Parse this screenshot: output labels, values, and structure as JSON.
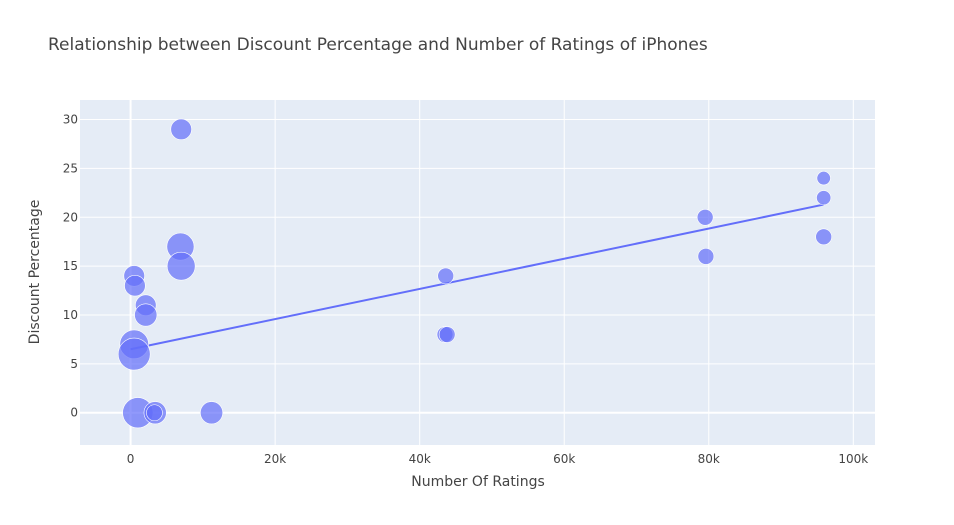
{
  "chart_data": {
    "type": "scatter",
    "title": "Relationship between Discount Percentage and Number of Ratings of iPhones",
    "xlabel": "Number Of Ratings",
    "ylabel": "Discount Percentage",
    "xlim": [
      -7000,
      103000
    ],
    "ylim": [
      -3.3,
      32
    ],
    "x_ticks": [
      0,
      20000,
      40000,
      60000,
      80000,
      100000
    ],
    "x_tick_labels": [
      "0",
      "20k",
      "40k",
      "60k",
      "80k",
      "100k"
    ],
    "y_ticks": [
      0,
      5,
      10,
      15,
      20,
      25,
      30
    ],
    "y_tick_labels": [
      "0",
      "5",
      "10",
      "15",
      "20",
      "25",
      "30"
    ],
    "grid": true,
    "legend": "none",
    "colors": {
      "plot_bg": "#E5ECF6",
      "grid": "#ffffff",
      "marker": "#636EFA",
      "trendline": "#636EFA"
    },
    "points": [
      {
        "x": 7000,
        "y": 29,
        "size": 1.3
      },
      {
        "x": 500,
        "y": 14,
        "size": 1.3
      },
      {
        "x": 600,
        "y": 13,
        "size": 1.3
      },
      {
        "x": 2100,
        "y": 11,
        "size": 1.3
      },
      {
        "x": 2100,
        "y": 10,
        "size": 1.4
      },
      {
        "x": 6900,
        "y": 17,
        "size": 1.7
      },
      {
        "x": 7000,
        "y": 15,
        "size": 1.75
      },
      {
        "x": 500,
        "y": 7,
        "size": 1.8
      },
      {
        "x": 500,
        "y": 6,
        "size": 2.0
      },
      {
        "x": 1000,
        "y": 0,
        "size": 1.9
      },
      {
        "x": 3400,
        "y": 0,
        "size": 1.4
      },
      {
        "x": 3300,
        "y": 0,
        "size": 1.0
      },
      {
        "x": 11200,
        "y": 0,
        "size": 1.4
      },
      {
        "x": 43600,
        "y": 14,
        "size": 1.0
      },
      {
        "x": 43500,
        "y": 8,
        "size": 1.0
      },
      {
        "x": 43800,
        "y": 8,
        "size": 1.0
      },
      {
        "x": 79500,
        "y": 20,
        "size": 1.0
      },
      {
        "x": 79600,
        "y": 16,
        "size": 1.0
      },
      {
        "x": 95900,
        "y": 24,
        "size": 0.85
      },
      {
        "x": 95900,
        "y": 22,
        "size": 0.9
      },
      {
        "x": 95900,
        "y": 18,
        "size": 1.0
      }
    ],
    "trendline": {
      "x": [
        0,
        95900
      ],
      "y": [
        6.5,
        21.3
      ]
    }
  }
}
